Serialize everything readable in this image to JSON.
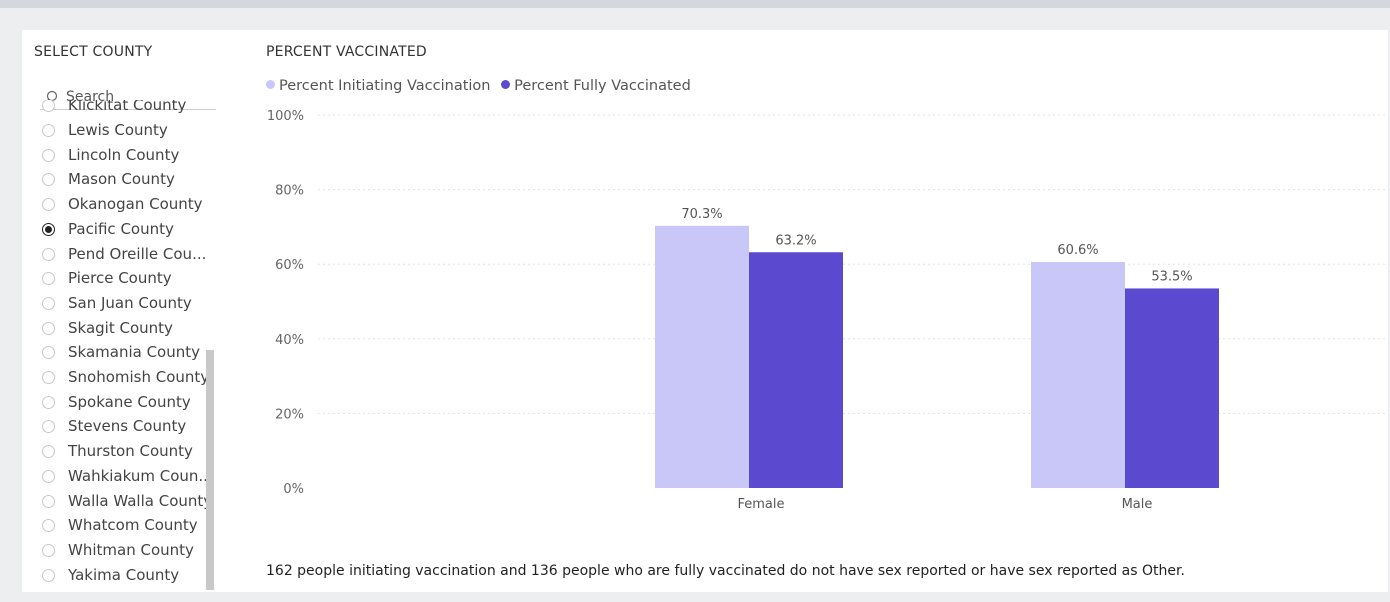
{
  "slicer": {
    "title": "SELECT COUNTY",
    "search_placeholder": "Search",
    "items": [
      {
        "label": "Klickitat County",
        "selected": false
      },
      {
        "label": "Lewis County",
        "selected": false
      },
      {
        "label": "Lincoln County",
        "selected": false
      },
      {
        "label": "Mason County",
        "selected": false
      },
      {
        "label": "Okanogan County",
        "selected": false
      },
      {
        "label": "Pacific County",
        "selected": true
      },
      {
        "label": "Pend Oreille Cou...",
        "selected": false
      },
      {
        "label": "Pierce County",
        "selected": false
      },
      {
        "label": "San Juan County",
        "selected": false
      },
      {
        "label": "Skagit County",
        "selected": false
      },
      {
        "label": "Skamania County",
        "selected": false
      },
      {
        "label": "Snohomish County",
        "selected": false
      },
      {
        "label": "Spokane County",
        "selected": false
      },
      {
        "label": "Stevens County",
        "selected": false
      },
      {
        "label": "Thurston County",
        "selected": false
      },
      {
        "label": "Wahkiakum Coun...",
        "selected": false
      },
      {
        "label": "Walla Walla County",
        "selected": false
      },
      {
        "label": "Whatcom County",
        "selected": false
      },
      {
        "label": "Whitman County",
        "selected": false
      },
      {
        "label": "Yakima County",
        "selected": false
      }
    ]
  },
  "chart_data": {
    "type": "bar",
    "title": "PERCENT VACCINATED",
    "categories": [
      "Female",
      "Male"
    ],
    "series": [
      {
        "name": "Percent Initiating Vaccination",
        "values": [
          70.3,
          60.6
        ],
        "labels": [
          "70.3%",
          "60.6%"
        ],
        "color": "#c8c7f7"
      },
      {
        "name": "Percent Fully Vaccinated",
        "values": [
          63.2,
          53.5
        ],
        "labels": [
          "63.2%",
          "53.5%"
        ],
        "color": "#5b49cf"
      }
    ],
    "ylim": [
      0,
      100
    ],
    "yticks": [
      0,
      20,
      40,
      60,
      80,
      100
    ],
    "ytick_labels": [
      "0%",
      "20%",
      "40%",
      "60%",
      "80%",
      "100%"
    ],
    "xlabel": "",
    "ylabel": "",
    "grid": true,
    "legend_position": "top-left"
  },
  "footnote": "162 people initiating vaccination and 136 people who are fully vaccinated do not have sex reported or have sex reported as Other."
}
